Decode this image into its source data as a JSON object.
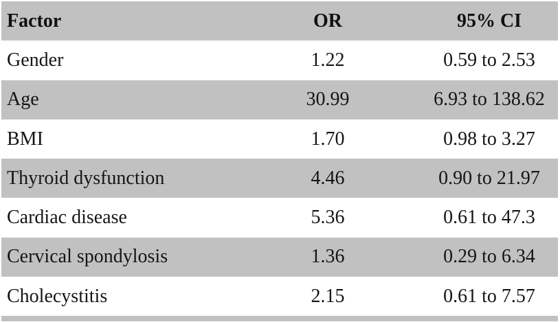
{
  "table": {
    "columns": {
      "factor": "Factor",
      "or": "OR",
      "ci": "95% CI"
    },
    "rows": [
      {
        "factor": "Gender",
        "or": "1.22",
        "ci": "0.59 to 2.53"
      },
      {
        "factor": "Age",
        "or": "30.99",
        "ci": "6.93 to 138.62"
      },
      {
        "factor": "BMI",
        "or": "1.70",
        "ci": "0.98 to 3.27"
      },
      {
        "factor": "Thyroid dysfunction",
        "or": "4.46",
        "ci": "0.90 to 21.97"
      },
      {
        "factor": "Cardiac disease",
        "or": "5.36",
        "ci": "0.61 to 47.3"
      },
      {
        "factor": "Cervical spondylosis",
        "or": "1.36",
        "ci": "0.29 to 6.34"
      },
      {
        "factor": "Cholecystitis",
        "or": "2.15",
        "ci": "0.61 to 7.57"
      }
    ],
    "colors": {
      "stripe": "#c1c1c1",
      "alt_row": "#ffffff",
      "text": "#151515"
    }
  },
  "chart_data": {
    "type": "table",
    "title": "",
    "columns": [
      "Factor",
      "OR",
      "95% CI"
    ],
    "rows": [
      [
        "Gender",
        1.22,
        "0.59 to 2.53"
      ],
      [
        "Age",
        30.99,
        "6.93 to 138.62"
      ],
      [
        "BMI",
        1.7,
        "0.98 to 3.27"
      ],
      [
        "Thyroid dysfunction",
        4.46,
        "0.90 to 21.97"
      ],
      [
        "Cardiac disease",
        5.36,
        "0.61 to 47.3"
      ],
      [
        "Cervical spondylosis",
        1.36,
        "0.29 to 6.34"
      ],
      [
        "Cholecystitis",
        2.15,
        "0.61 to 7.57"
      ]
    ]
  }
}
